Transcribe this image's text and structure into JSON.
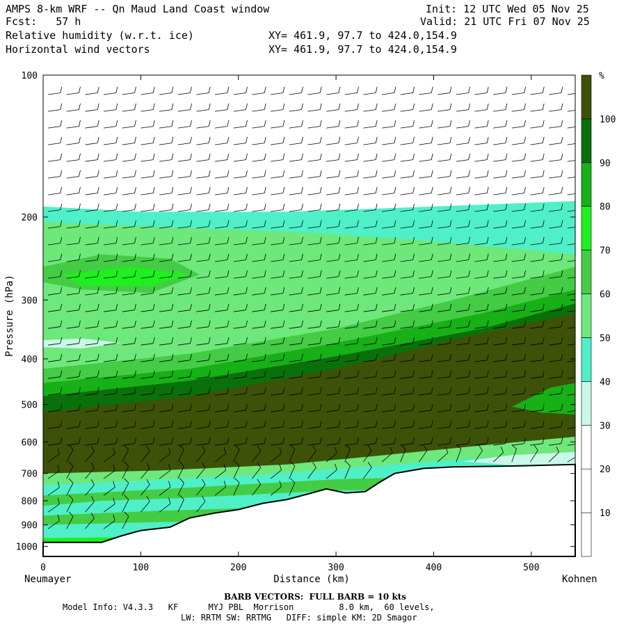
{
  "header": {
    "title": "AMPS 8-km WRF -- Qn Maud Land Coast window",
    "forecast": "Fcst:   57 h",
    "init": "Init: 12 UTC Wed 05 Nov 25",
    "valid": "Valid: 21 UTC Fri 07 Nov 25",
    "field1": "Relative humidity (w.r.t. ice)",
    "field2": "Horizontal wind vectors",
    "xy1": "XY= 461.9, 97.7 to 424.0,154.9",
    "xy2": "XY= 461.9, 97.7 to 424.0,154.9"
  },
  "chart_data": {
    "type": "heatmap",
    "title": "",
    "xlabel": "Distance (km)",
    "ylabel": "Pressure (hPa)",
    "x_ticks": [
      0,
      100,
      200,
      300,
      400,
      500
    ],
    "y_ticks": [
      100,
      200,
      300,
      400,
      500,
      600,
      700,
      800,
      900,
      1000
    ],
    "xlim": [
      0,
      545
    ],
    "ylim": [
      1050,
      100
    ],
    "y_scale": "log",
    "left_label": "Neumayer",
    "right_label": "Kohnen",
    "colorbar": {
      "unit": "%",
      "levels": [
        10,
        20,
        30,
        40,
        50,
        60,
        70,
        80,
        90,
        100
      ],
      "colors": [
        "#ffffff",
        "#ffffff",
        "#ffffff",
        "#c8f8e8",
        "#4ff0c8",
        "#6ee87a",
        "#44cc44",
        "#1ef01e",
        "#17b017",
        "#0a700a",
        "#3d5206"
      ]
    },
    "terrain_surface": [
      {
        "x": 0,
        "p": 980
      },
      {
        "x": 60,
        "p": 980
      },
      {
        "x": 80,
        "p": 950
      },
      {
        "x": 100,
        "p": 925
      },
      {
        "x": 130,
        "p": 910
      },
      {
        "x": 150,
        "p": 870
      },
      {
        "x": 175,
        "p": 850
      },
      {
        "x": 200,
        "p": 835
      },
      {
        "x": 225,
        "p": 810
      },
      {
        "x": 250,
        "p": 795
      },
      {
        "x": 270,
        "p": 775
      },
      {
        "x": 290,
        "p": 755
      },
      {
        "x": 310,
        "p": 770
      },
      {
        "x": 330,
        "p": 765
      },
      {
        "x": 345,
        "p": 730
      },
      {
        "x": 360,
        "p": 700
      },
      {
        "x": 390,
        "p": 683
      },
      {
        "x": 420,
        "p": 678
      },
      {
        "x": 480,
        "p": 675
      },
      {
        "x": 545,
        "p": 670
      }
    ],
    "annotations": [
      "BARB VECTORS:  FULL BARB = 10 kts"
    ]
  },
  "footer": {
    "barb": "BARB VECTORS:  FULL BARB = 10 kts",
    "model1": "Model Info: V4.3.3   KF      MYJ PBL  Morrison         8.0 km,  60 levels,",
    "model2": "LW: RRTM SW: RRTMG   DIFF: simple KM: 2D Smagor"
  }
}
